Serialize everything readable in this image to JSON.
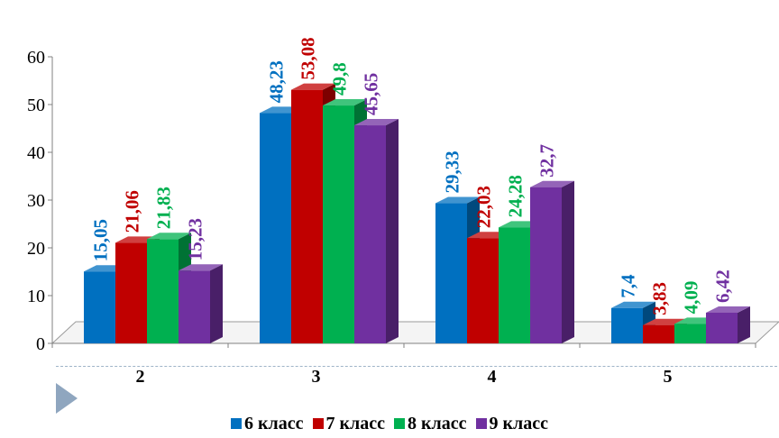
{
  "chart_data": {
    "type": "bar",
    "title": "",
    "xlabel": "",
    "ylabel": "",
    "categories": [
      "2",
      "3",
      "4",
      "5"
    ],
    "ylim": [
      0,
      60
    ],
    "yticks": [
      "0",
      "10",
      "20",
      "30",
      "40",
      "50",
      "60"
    ],
    "legend_position": "bottom",
    "series": [
      {
        "name": "6 класс",
        "color": "#0070c0",
        "values": [
          15.05,
          48.23,
          29.33,
          7.4
        ],
        "labels": [
          "15,05",
          "48,23",
          "29,33",
          "7,4"
        ]
      },
      {
        "name": "7 класс",
        "color": "#c00000",
        "values": [
          21.06,
          53.08,
          22.03,
          3.83
        ],
        "labels": [
          "21,06",
          "53,08",
          "22,03",
          "3,83"
        ]
      },
      {
        "name": "8 класс",
        "color": "#00b050",
        "values": [
          21.83,
          49.8,
          24.28,
          4.09
        ],
        "labels": [
          "21,83",
          "49,8",
          "24,28",
          "4,09"
        ]
      },
      {
        "name": "9 класс",
        "color": "#7030a0",
        "values": [
          15.23,
          45.65,
          32.7,
          6.42
        ],
        "labels": [
          "15,23",
          "45,65",
          "32,7",
          "6,42"
        ]
      }
    ]
  }
}
